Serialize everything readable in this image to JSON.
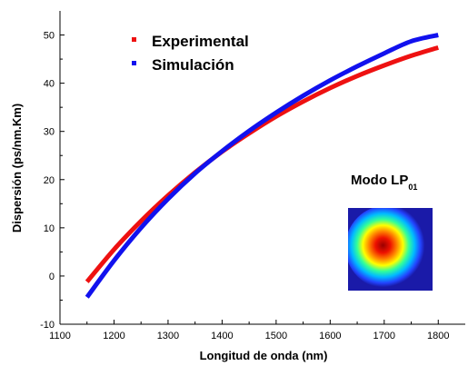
{
  "chart_data": {
    "type": "line",
    "xlabel": "Longitud de onda (nm)",
    "ylabel": "Dispersión (ps/nm.Km)",
    "xlim": [
      1100,
      1850
    ],
    "ylim": [
      -10,
      55
    ],
    "xticks": [
      1100,
      1200,
      1300,
      1400,
      1500,
      1600,
      1700,
      1800
    ],
    "yticks": [
      -10,
      0,
      10,
      20,
      30,
      40,
      50
    ],
    "grid": false,
    "legend_position": "top-left",
    "series": [
      {
        "name": "Experimental",
        "color": "#ee1111",
        "x": [
          1150,
          1200,
          1250,
          1300,
          1350,
          1400,
          1450,
          1500,
          1550,
          1600,
          1650,
          1700,
          1750,
          1800
        ],
        "y": [
          -1.2,
          5.5,
          11.4,
          16.7,
          21.5,
          25.8,
          29.6,
          33.1,
          36.2,
          39.0,
          41.5,
          43.7,
          45.7,
          47.4
        ]
      },
      {
        "name": "Simulación",
        "color": "#1111ee",
        "x": [
          1150,
          1200,
          1250,
          1300,
          1350,
          1400,
          1450,
          1500,
          1550,
          1600,
          1650,
          1700,
          1750,
          1800
        ],
        "y": [
          -4.4,
          3.2,
          10.0,
          16.0,
          21.3,
          25.9,
          30.1,
          33.9,
          37.4,
          40.6,
          43.5,
          46.2,
          48.7,
          50.0
        ]
      }
    ],
    "inset": {
      "title_main": "Modo LP",
      "title_sub": "01",
      "colormap": [
        "#1a1aa8",
        "#2244ff",
        "#00bbff",
        "#33ff99",
        "#ffff00",
        "#ff8800",
        "#ee1100",
        "#990000"
      ]
    }
  }
}
